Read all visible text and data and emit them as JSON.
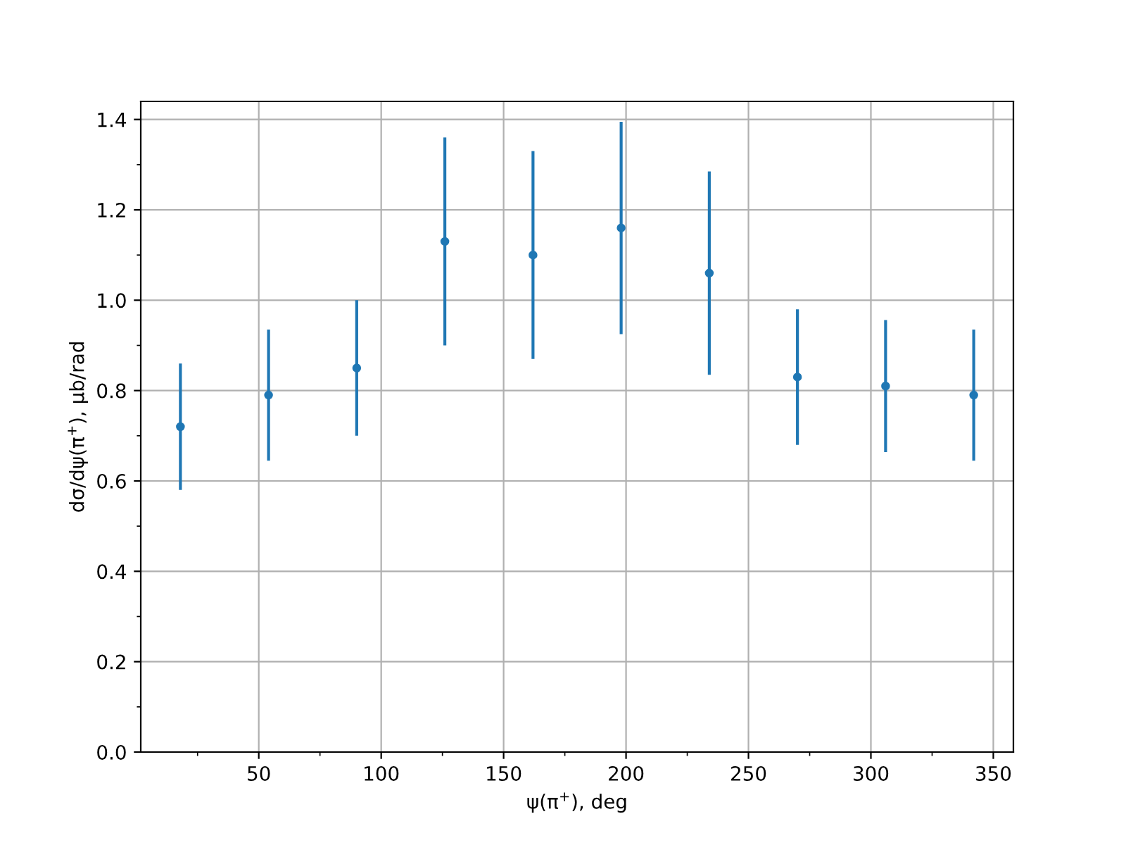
{
  "chart_data": {
    "type": "scatter",
    "xlabel": "ψ(π$^{+}$), deg",
    "ylabel": "dσ/dψ(π$^{+}$), μb/rad",
    "x": [
      18,
      54,
      90,
      126,
      162,
      198,
      234,
      270,
      306,
      342
    ],
    "series": [
      {
        "color": "#1f77b4",
        "values": [
          0.72,
          0.79,
          0.85,
          1.13,
          1.1,
          1.16,
          1.06,
          0.83,
          0.81,
          0.79
        ],
        "errors": [
          0.14,
          0.145,
          0.15,
          0.23,
          0.23,
          0.235,
          0.225,
          0.15,
          0.146,
          0.145
        ]
      }
    ],
    "xlim": [
      1.8,
      358.2
    ],
    "xticks": [
      50,
      100,
      150,
      200,
      250,
      300,
      350
    ],
    "ylim": [
      0,
      1.44
    ],
    "yticks": [
      {
        "value": 0,
        "label": "0.0"
      },
      0.2,
      0.4,
      0.6,
      0.8,
      {
        "value": 1,
        "label": "1.0"
      },
      1.2,
      1.4
    ],
    "grid": true,
    "marker": "circle"
  }
}
